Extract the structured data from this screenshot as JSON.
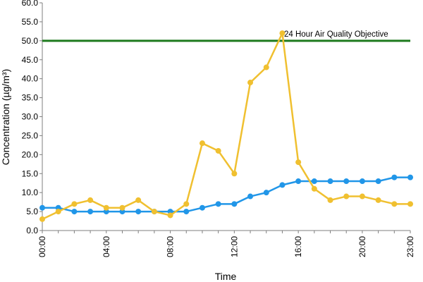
{
  "chart_data": {
    "type": "line",
    "title": "",
    "xlabel": "Time",
    "ylabel": "Concentration (µg/m³)",
    "x": [
      "00:00",
      "01:00",
      "02:00",
      "03:00",
      "04:00",
      "05:00",
      "06:00",
      "07:00",
      "08:00",
      "09:00",
      "10:00",
      "11:00",
      "12:00",
      "13:00",
      "14:00",
      "15:00",
      "16:00",
      "17:00",
      "18:00",
      "19:00",
      "20:00",
      "21:00",
      "22:00",
      "23:00"
    ],
    "x_tick_labels": [
      "00:00",
      "04:00",
      "08:00",
      "12:00",
      "16:00",
      "20:00",
      "23:00"
    ],
    "ylim": [
      0,
      60
    ],
    "y_tick_labels": [
      "0.0",
      "5.0",
      "10.0",
      "15.0",
      "20.0",
      "25.0",
      "30.0",
      "35.0",
      "40.0",
      "45.0",
      "50.0",
      "55.0",
      "60.0"
    ],
    "grid": false,
    "series": [
      {
        "color": "#f0c030",
        "values": [
          3,
          5,
          7,
          8,
          6,
          6,
          8,
          5,
          4,
          7,
          23,
          21,
          15,
          39,
          43,
          52,
          18,
          11,
          8,
          9,
          9,
          8,
          7,
          7
        ]
      },
      {
        "color": "#2196e8",
        "values": [
          6,
          6,
          5,
          5,
          5,
          5,
          5,
          5,
          5,
          5,
          6,
          7,
          7,
          9,
          10,
          12,
          13,
          13,
          13,
          13,
          13,
          13,
          14,
          14
        ]
      }
    ],
    "reference_line": {
      "value": 50,
      "label": "24 Hour Air Quality Objective",
      "color": "#1e7a1e"
    },
    "axis_color": "#7f7f7f"
  }
}
